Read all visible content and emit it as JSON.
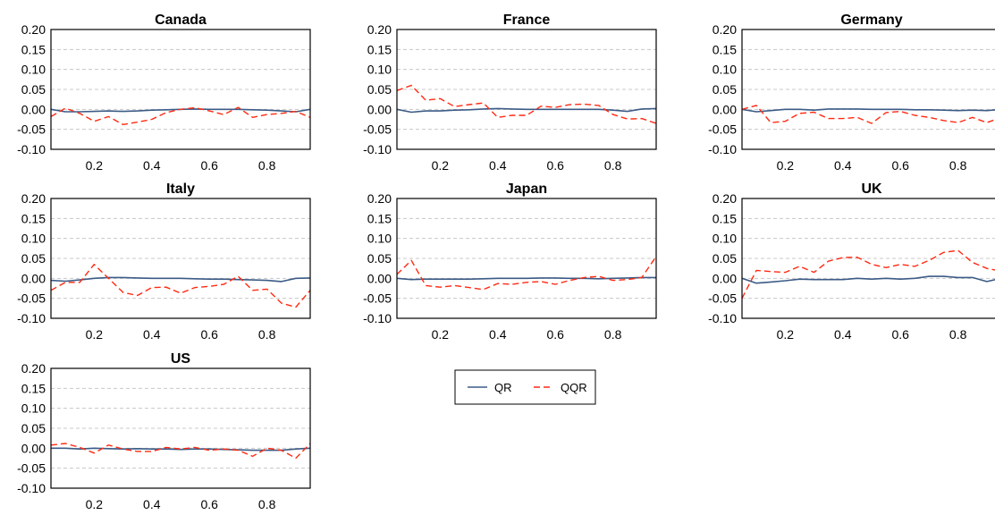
{
  "colors": {
    "qr": "#3b5b86",
    "qqr": "#ff2a12",
    "grid": "#c8c8c8",
    "axis": "#000000"
  },
  "legend": {
    "entries": [
      "QR",
      "QQR"
    ],
    "placement": "center-right"
  },
  "chart_data": [
    {
      "type": "line",
      "title": "Canada",
      "xlabel": "",
      "ylabel": "",
      "xlim": [
        0.05,
        0.95
      ],
      "ylim": [
        -0.1,
        0.2
      ],
      "xticks": [
        "0.2",
        "0.4",
        "0.6",
        "0.8"
      ],
      "yticks": [
        "-0.10",
        "-0.05",
        "0.00",
        "0.05",
        "0.10",
        "0.15",
        "0.20"
      ],
      "grid": "horizontal-dashed",
      "x": [
        0.05,
        0.1,
        0.15,
        0.2,
        0.25,
        0.3,
        0.35,
        0.4,
        0.45,
        0.5,
        0.55,
        0.6,
        0.65,
        0.7,
        0.75,
        0.8,
        0.85,
        0.9,
        0.95
      ],
      "series": [
        {
          "name": "QR",
          "values": [
            0.0,
            -0.006,
            -0.006,
            -0.005,
            -0.004,
            -0.005,
            -0.004,
            -0.002,
            -0.001,
            0.0,
            0.001,
            0.0,
            0.0,
            0.0,
            -0.001,
            -0.002,
            -0.004,
            -0.006,
            0.0
          ]
        },
        {
          "name": "QQR",
          "values": [
            -0.018,
            0.003,
            -0.01,
            -0.03,
            -0.018,
            -0.038,
            -0.032,
            -0.025,
            -0.008,
            0.0,
            0.004,
            -0.004,
            -0.013,
            0.005,
            -0.02,
            -0.013,
            -0.01,
            -0.005,
            -0.02
          ]
        }
      ]
    },
    {
      "type": "line",
      "title": "France",
      "xlabel": "",
      "ylabel": "",
      "xlim": [
        0.05,
        0.95
      ],
      "ylim": [
        -0.1,
        0.2
      ],
      "xticks": [
        "0.2",
        "0.4",
        "0.6",
        "0.8"
      ],
      "yticks": [
        "-0.10",
        "-0.05",
        "0.00",
        "0.05",
        "0.10",
        "0.15",
        "0.20"
      ],
      "grid": "horizontal-dashed",
      "x": [
        0.05,
        0.1,
        0.15,
        0.2,
        0.25,
        0.3,
        0.35,
        0.4,
        0.45,
        0.5,
        0.55,
        0.6,
        0.65,
        0.7,
        0.75,
        0.8,
        0.85,
        0.9,
        0.95
      ],
      "series": [
        {
          "name": "QR",
          "values": [
            0.0,
            -0.007,
            -0.004,
            -0.004,
            -0.002,
            -0.001,
            0.001,
            0.002,
            0.001,
            0.0,
            0.0,
            0.0,
            0.0,
            0.0,
            0.0,
            -0.002,
            -0.005,
            0.001,
            0.002
          ]
        },
        {
          "name": "QQR",
          "values": [
            0.047,
            0.06,
            0.023,
            0.027,
            0.007,
            0.012,
            0.016,
            -0.02,
            -0.015,
            -0.015,
            0.008,
            0.005,
            0.012,
            0.013,
            0.01,
            -0.013,
            -0.024,
            -0.023,
            -0.035
          ]
        }
      ]
    },
    {
      "type": "line",
      "title": "Germany",
      "xlabel": "",
      "ylabel": "",
      "xlim": [
        0.05,
        0.95
      ],
      "ylim": [
        -0.1,
        0.2
      ],
      "xticks": [
        "0.2",
        "0.4",
        "0.6",
        "0.8"
      ],
      "yticks": [
        "-0.10",
        "-0.05",
        "0.00",
        "0.05",
        "0.10",
        "0.15",
        "0.20"
      ],
      "grid": "horizontal-dashed",
      "x": [
        0.05,
        0.1,
        0.15,
        0.2,
        0.25,
        0.3,
        0.35,
        0.4,
        0.45,
        0.5,
        0.55,
        0.6,
        0.65,
        0.7,
        0.75,
        0.8,
        0.85,
        0.9,
        0.95
      ],
      "series": [
        {
          "name": "QR",
          "values": [
            0.0,
            -0.006,
            -0.003,
            0.0,
            0.0,
            -0.002,
            0.001,
            0.001,
            0.001,
            0.0,
            0.0,
            0.0,
            -0.001,
            -0.001,
            -0.002,
            -0.003,
            -0.002,
            -0.003,
            0.0
          ]
        },
        {
          "name": "QQR",
          "values": [
            0.0,
            0.01,
            -0.033,
            -0.03,
            -0.01,
            -0.007,
            -0.023,
            -0.023,
            -0.02,
            -0.035,
            -0.008,
            -0.005,
            -0.015,
            -0.02,
            -0.028,
            -0.033,
            -0.02,
            -0.033,
            -0.02
          ]
        }
      ]
    },
    {
      "type": "line",
      "title": "Italy",
      "xlabel": "",
      "ylabel": "",
      "xlim": [
        0.05,
        0.95
      ],
      "ylim": [
        -0.1,
        0.2
      ],
      "xticks": [
        "0.2",
        "0.4",
        "0.6",
        "0.8"
      ],
      "yticks": [
        "-0.10",
        "-0.05",
        "0.00",
        "0.05",
        "0.10",
        "0.15",
        "0.20"
      ],
      "grid": "horizontal-dashed",
      "x": [
        0.05,
        0.1,
        0.15,
        0.2,
        0.25,
        0.3,
        0.35,
        0.4,
        0.45,
        0.5,
        0.55,
        0.6,
        0.65,
        0.7,
        0.75,
        0.8,
        0.85,
        0.9,
        0.95
      ],
      "series": [
        {
          "name": "QR",
          "values": [
            -0.005,
            -0.007,
            -0.004,
            0.0,
            0.002,
            0.002,
            0.001,
            0.0,
            0.0,
            0.0,
            -0.001,
            -0.002,
            -0.002,
            -0.003,
            -0.004,
            -0.005,
            -0.008,
            0.0,
            0.001
          ]
        },
        {
          "name": "QQR",
          "values": [
            -0.03,
            -0.01,
            -0.01,
            0.035,
            0.0,
            -0.035,
            -0.043,
            -0.023,
            -0.022,
            -0.037,
            -0.023,
            -0.02,
            -0.015,
            0.005,
            -0.03,
            -0.027,
            -0.062,
            -0.072,
            -0.03
          ]
        }
      ]
    },
    {
      "type": "line",
      "title": "Japan",
      "xlabel": "",
      "ylabel": "",
      "xlim": [
        0.05,
        0.95
      ],
      "ylim": [
        -0.1,
        0.2
      ],
      "xticks": [
        "0.2",
        "0.4",
        "0.6",
        "0.8"
      ],
      "yticks": [
        "-0.10",
        "-0.05",
        "0.00",
        "0.05",
        "0.10",
        "0.15",
        "0.20"
      ],
      "grid": "horizontal-dashed",
      "x": [
        0.05,
        0.1,
        0.15,
        0.2,
        0.25,
        0.3,
        0.35,
        0.4,
        0.45,
        0.5,
        0.55,
        0.6,
        0.65,
        0.7,
        0.75,
        0.8,
        0.85,
        0.9,
        0.95
      ],
      "series": [
        {
          "name": "QR",
          "values": [
            0.0,
            -0.003,
            -0.002,
            -0.002,
            -0.002,
            -0.002,
            -0.001,
            0.0,
            0.0,
            0.0,
            0.001,
            0.001,
            0.0,
            0.0,
            -0.001,
            0.0,
            0.001,
            0.002,
            0.002
          ]
        },
        {
          "name": "QQR",
          "values": [
            0.01,
            0.045,
            -0.018,
            -0.022,
            -0.018,
            -0.023,
            -0.028,
            -0.013,
            -0.015,
            -0.01,
            -0.008,
            -0.015,
            -0.005,
            0.002,
            0.005,
            -0.005,
            -0.003,
            0.002,
            0.055
          ]
        }
      ]
    },
    {
      "type": "line",
      "title": "UK",
      "xlabel": "",
      "ylabel": "",
      "xlim": [
        0.05,
        0.95
      ],
      "ylim": [
        -0.1,
        0.2
      ],
      "xticks": [
        "0.2",
        "0.4",
        "0.6",
        "0.8"
      ],
      "yticks": [
        "-0.10",
        "-0.05",
        "0.00",
        "0.05",
        "0.10",
        "0.15",
        "0.20"
      ],
      "grid": "horizontal-dashed",
      "x": [
        0.05,
        0.1,
        0.15,
        0.2,
        0.25,
        0.3,
        0.35,
        0.4,
        0.45,
        0.5,
        0.55,
        0.6,
        0.65,
        0.7,
        0.75,
        0.8,
        0.85,
        0.9,
        0.95
      ],
      "series": [
        {
          "name": "QR",
          "values": [
            0.0,
            -0.012,
            -0.009,
            -0.006,
            -0.002,
            -0.003,
            -0.003,
            -0.003,
            0.0,
            -0.002,
            0.0,
            -0.002,
            0.0,
            0.005,
            0.005,
            0.002,
            0.002,
            -0.008,
            0.0
          ]
        },
        {
          "name": "QQR",
          "values": [
            -0.05,
            0.02,
            0.017,
            0.015,
            0.03,
            0.015,
            0.043,
            0.052,
            0.053,
            0.035,
            0.027,
            0.035,
            0.03,
            0.045,
            0.065,
            0.07,
            0.04,
            0.025,
            0.018
          ]
        }
      ]
    },
    {
      "type": "line",
      "title": "US",
      "xlabel": "",
      "ylabel": "",
      "xlim": [
        0.05,
        0.95
      ],
      "ylim": [
        -0.1,
        0.2
      ],
      "xticks": [
        "0.2",
        "0.4",
        "0.6",
        "0.8"
      ],
      "yticks": [
        "-0.10",
        "-0.05",
        "0.00",
        "0.05",
        "0.10",
        "0.15",
        "0.20"
      ],
      "grid": "horizontal-dashed",
      "x": [
        0.05,
        0.1,
        0.15,
        0.2,
        0.25,
        0.3,
        0.35,
        0.4,
        0.45,
        0.5,
        0.55,
        0.6,
        0.65,
        0.7,
        0.75,
        0.8,
        0.85,
        0.9,
        0.95
      ],
      "series": [
        {
          "name": "QR",
          "values": [
            0.0,
            0.0,
            -0.002,
            0.0,
            -0.001,
            -0.002,
            -0.001,
            -0.002,
            -0.002,
            -0.003,
            -0.002,
            -0.002,
            -0.003,
            -0.004,
            -0.005,
            -0.005,
            -0.005,
            -0.002,
            0.0
          ]
        },
        {
          "name": "QQR",
          "values": [
            0.008,
            0.012,
            0.002,
            -0.012,
            0.008,
            -0.002,
            -0.008,
            -0.008,
            0.002,
            -0.002,
            0.002,
            -0.005,
            -0.002,
            -0.005,
            -0.02,
            0.0,
            -0.005,
            -0.025,
            0.012
          ]
        }
      ]
    }
  ]
}
